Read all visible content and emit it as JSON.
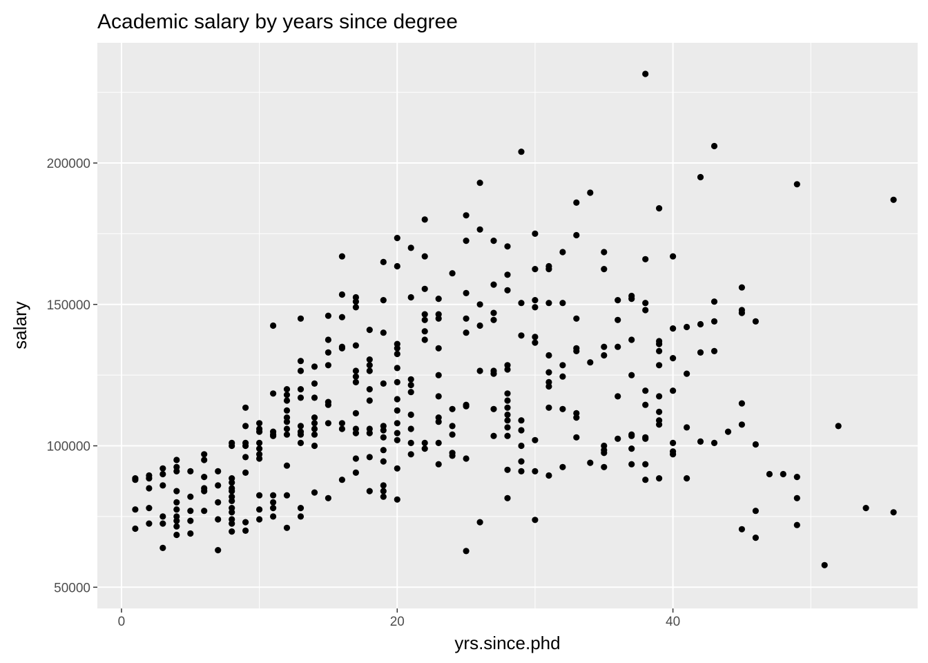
{
  "chart_data": {
    "type": "scatter",
    "title": "Academic salary by years since degree",
    "xlabel": "yrs.since.phd",
    "ylabel": "salary",
    "xlim": [
      -1.75,
      57.75
    ],
    "ylim": [
      42500,
      242500
    ],
    "x_ticks": [
      0,
      20,
      40
    ],
    "x_tick_labels": [
      "0",
      "20",
      "40"
    ],
    "y_ticks": [
      50000,
      100000,
      150000,
      200000
    ],
    "y_tick_labels": [
      "50000",
      "100000",
      "150000",
      "200000"
    ],
    "grid": true,
    "background": "#ebebeb",
    "grid_color": "#ffffff",
    "point_color": "#000000",
    "points": [
      [
        1,
        88500
      ],
      [
        1,
        88000
      ],
      [
        1,
        77500
      ],
      [
        1,
        70700
      ],
      [
        2,
        89500
      ],
      [
        2,
        88500
      ],
      [
        2,
        85000
      ],
      [
        2,
        78000
      ],
      [
        2,
        72500
      ],
      [
        3,
        92000
      ],
      [
        3,
        90000
      ],
      [
        3,
        86000
      ],
      [
        3,
        75000
      ],
      [
        3,
        72500
      ],
      [
        3,
        63900
      ],
      [
        4,
        95000
      ],
      [
        4,
        92500
      ],
      [
        4,
        91000
      ],
      [
        4,
        84000
      ],
      [
        4,
        80000
      ],
      [
        4,
        77500
      ],
      [
        4,
        75000
      ],
      [
        4,
        73500
      ],
      [
        4,
        71500
      ],
      [
        4,
        68500
      ],
      [
        5,
        91000
      ],
      [
        5,
        82000
      ],
      [
        5,
        77000
      ],
      [
        5,
        73500
      ],
      [
        5,
        69000
      ],
      [
        6,
        97000
      ],
      [
        6,
        95000
      ],
      [
        6,
        89000
      ],
      [
        6,
        85000
      ],
      [
        6,
        84000
      ],
      [
        6,
        77000
      ],
      [
        7,
        91000
      ],
      [
        7,
        86000
      ],
      [
        7,
        80000
      ],
      [
        7,
        74000
      ],
      [
        7,
        63100
      ],
      [
        8,
        101000
      ],
      [
        8,
        100000
      ],
      [
        8,
        88500
      ],
      [
        8,
        87000
      ],
      [
        8,
        85000
      ],
      [
        8,
        84000
      ],
      [
        8,
        82000
      ],
      [
        8,
        80500
      ],
      [
        8,
        78000
      ],
      [
        8,
        76500
      ],
      [
        8,
        74000
      ],
      [
        8,
        72500
      ],
      [
        8,
        69700
      ],
      [
        9,
        113500
      ],
      [
        9,
        107000
      ],
      [
        9,
        101000
      ],
      [
        9,
        100000
      ],
      [
        9,
        96000
      ],
      [
        9,
        90500
      ],
      [
        9,
        73000
      ],
      [
        9,
        70000
      ],
      [
        10,
        108000
      ],
      [
        10,
        106000
      ],
      [
        10,
        105000
      ],
      [
        10,
        101000
      ],
      [
        10,
        99000
      ],
      [
        10,
        97000
      ],
      [
        10,
        95500
      ],
      [
        10,
        82500
      ],
      [
        10,
        77500
      ],
      [
        10,
        74000
      ],
      [
        11,
        142500
      ],
      [
        11,
        118500
      ],
      [
        11,
        105000
      ],
      [
        11,
        104000
      ],
      [
        11,
        103500
      ],
      [
        11,
        82500
      ],
      [
        11,
        80000
      ],
      [
        11,
        78000
      ],
      [
        11,
        75000
      ],
      [
        12,
        120000
      ],
      [
        12,
        118000
      ],
      [
        12,
        116000
      ],
      [
        12,
        112500
      ],
      [
        12,
        110000
      ],
      [
        12,
        108500
      ],
      [
        12,
        106000
      ],
      [
        12,
        104000
      ],
      [
        12,
        93000
      ],
      [
        12,
        82500
      ],
      [
        12,
        71000
      ],
      [
        13,
        145000
      ],
      [
        13,
        130000
      ],
      [
        13,
        126500
      ],
      [
        13,
        120000
      ],
      [
        13,
        117000
      ],
      [
        13,
        107000
      ],
      [
        13,
        105000
      ],
      [
        13,
        104000
      ],
      [
        13,
        101000
      ],
      [
        13,
        78000
      ],
      [
        13,
        75000
      ],
      [
        14,
        128000
      ],
      [
        14,
        122000
      ],
      [
        14,
        117000
      ],
      [
        14,
        110000
      ],
      [
        14,
        108000
      ],
      [
        14,
        106000
      ],
      [
        14,
        104000
      ],
      [
        14,
        100000
      ],
      [
        14,
        83500
      ],
      [
        15,
        146000
      ],
      [
        15,
        137500
      ],
      [
        15,
        133000
      ],
      [
        15,
        128500
      ],
      [
        15,
        115500
      ],
      [
        15,
        114500
      ],
      [
        15,
        108000
      ],
      [
        15,
        81500
      ],
      [
        16,
        167000
      ],
      [
        16,
        153500
      ],
      [
        16,
        145500
      ],
      [
        16,
        135000
      ],
      [
        16,
        134500
      ],
      [
        16,
        108000
      ],
      [
        16,
        106000
      ],
      [
        16,
        88000
      ],
      [
        17,
        152500
      ],
      [
        17,
        151000
      ],
      [
        17,
        149000
      ],
      [
        17,
        135500
      ],
      [
        17,
        126500
      ],
      [
        17,
        124500
      ],
      [
        17,
        122500
      ],
      [
        17,
        111500
      ],
      [
        17,
        106000
      ],
      [
        17,
        104500
      ],
      [
        17,
        95500
      ],
      [
        17,
        90500
      ],
      [
        18,
        141000
      ],
      [
        18,
        130500
      ],
      [
        18,
        128500
      ],
      [
        18,
        126500
      ],
      [
        18,
        120000
      ],
      [
        18,
        116000
      ],
      [
        18,
        106000
      ],
      [
        18,
        104500
      ],
      [
        18,
        96000
      ],
      [
        18,
        84000
      ],
      [
        19,
        165000
      ],
      [
        19,
        151500
      ],
      [
        19,
        140000
      ],
      [
        19,
        122000
      ],
      [
        19,
        107000
      ],
      [
        19,
        105500
      ],
      [
        19,
        103000
      ],
      [
        19,
        98500
      ],
      [
        19,
        94500
      ],
      [
        19,
        86000
      ],
      [
        19,
        84000
      ],
      [
        19,
        82000
      ],
      [
        20,
        173500
      ],
      [
        20,
        163500
      ],
      [
        20,
        136000
      ],
      [
        20,
        134500
      ],
      [
        20,
        132500
      ],
      [
        20,
        127500
      ],
      [
        20,
        122500
      ],
      [
        20,
        116500
      ],
      [
        20,
        112500
      ],
      [
        20,
        108000
      ],
      [
        20,
        104500
      ],
      [
        20,
        102000
      ],
      [
        20,
        92000
      ],
      [
        20,
        81000
      ],
      [
        21,
        170000
      ],
      [
        21,
        152500
      ],
      [
        21,
        123500
      ],
      [
        21,
        121500
      ],
      [
        21,
        119000
      ],
      [
        21,
        111000
      ],
      [
        21,
        106000
      ],
      [
        21,
        101000
      ],
      [
        21,
        97000
      ],
      [
        22,
        180000
      ],
      [
        22,
        167000
      ],
      [
        22,
        155500
      ],
      [
        22,
        146500
      ],
      [
        22,
        144500
      ],
      [
        22,
        140500
      ],
      [
        22,
        137500
      ],
      [
        22,
        101000
      ],
      [
        22,
        99000
      ],
      [
        23,
        152000
      ],
      [
        23,
        146500
      ],
      [
        23,
        145000
      ],
      [
        23,
        134500
      ],
      [
        23,
        125000
      ],
      [
        23,
        117500
      ],
      [
        23,
        110000
      ],
      [
        23,
        108500
      ],
      [
        23,
        101000
      ],
      [
        23,
        93500
      ],
      [
        24,
        161000
      ],
      [
        24,
        113000
      ],
      [
        24,
        107000
      ],
      [
        24,
        104000
      ],
      [
        24,
        97500
      ],
      [
        24,
        96500
      ],
      [
        25,
        181500
      ],
      [
        25,
        172500
      ],
      [
        25,
        154000
      ],
      [
        25,
        145000
      ],
      [
        25,
        140000
      ],
      [
        25,
        114500
      ],
      [
        25,
        114000
      ],
      [
        25,
        95500
      ],
      [
        25,
        62800
      ],
      [
        26,
        193000
      ],
      [
        26,
        176500
      ],
      [
        26,
        150000
      ],
      [
        26,
        142500
      ],
      [
        26,
        126500
      ],
      [
        26,
        73000
      ],
      [
        27,
        172500
      ],
      [
        27,
        157000
      ],
      [
        27,
        147000
      ],
      [
        27,
        144500
      ],
      [
        27,
        126500
      ],
      [
        27,
        125500
      ],
      [
        27,
        113000
      ],
      [
        27,
        103500
      ],
      [
        28,
        170500
      ],
      [
        28,
        160500
      ],
      [
        28,
        155000
      ],
      [
        28,
        128500
      ],
      [
        28,
        127000
      ],
      [
        28,
        118500
      ],
      [
        28,
        116000
      ],
      [
        28,
        113500
      ],
      [
        28,
        111000
      ],
      [
        28,
        109000
      ],
      [
        28,
        106500
      ],
      [
        28,
        103500
      ],
      [
        28,
        91500
      ],
      [
        28,
        81500
      ],
      [
        29,
        204000
      ],
      [
        29,
        150500
      ],
      [
        29,
        139000
      ],
      [
        29,
        109000
      ],
      [
        29,
        105500
      ],
      [
        29,
        100000
      ],
      [
        29,
        94500
      ],
      [
        29,
        91000
      ],
      [
        30,
        175000
      ],
      [
        30,
        162500
      ],
      [
        30,
        151500
      ],
      [
        30,
        149000
      ],
      [
        30,
        138500
      ],
      [
        30,
        136500
      ],
      [
        30,
        102000
      ],
      [
        30,
        91000
      ],
      [
        30,
        73800
      ],
      [
        31,
        163500
      ],
      [
        31,
        162500
      ],
      [
        31,
        150500
      ],
      [
        31,
        132000
      ],
      [
        31,
        126000
      ],
      [
        31,
        122500
      ],
      [
        31,
        121000
      ],
      [
        31,
        113500
      ],
      [
        31,
        89500
      ],
      [
        32,
        168500
      ],
      [
        32,
        150500
      ],
      [
        32,
        128500
      ],
      [
        32,
        124500
      ],
      [
        32,
        113000
      ],
      [
        32,
        92500
      ],
      [
        33,
        186000
      ],
      [
        33,
        174500
      ],
      [
        33,
        145000
      ],
      [
        33,
        134500
      ],
      [
        33,
        133500
      ],
      [
        33,
        111500
      ],
      [
        33,
        110000
      ],
      [
        33,
        103000
      ],
      [
        34,
        189500
      ],
      [
        34,
        129500
      ],
      [
        34,
        94000
      ],
      [
        35,
        168500
      ],
      [
        35,
        162500
      ],
      [
        35,
        135000
      ],
      [
        35,
        132000
      ],
      [
        35,
        100000
      ],
      [
        35,
        98500
      ],
      [
        35,
        97500
      ],
      [
        35,
        92500
      ],
      [
        36,
        151500
      ],
      [
        36,
        144500
      ],
      [
        36,
        135000
      ],
      [
        36,
        117500
      ],
      [
        36,
        102500
      ],
      [
        37,
        153000
      ],
      [
        37,
        152000
      ],
      [
        37,
        137500
      ],
      [
        37,
        125000
      ],
      [
        37,
        104000
      ],
      [
        37,
        103500
      ],
      [
        37,
        99000
      ],
      [
        37,
        93500
      ],
      [
        38,
        231500
      ],
      [
        38,
        166000
      ],
      [
        38,
        150500
      ],
      [
        38,
        148000
      ],
      [
        38,
        119500
      ],
      [
        38,
        114500
      ],
      [
        38,
        103000
      ],
      [
        38,
        102500
      ],
      [
        38,
        93500
      ],
      [
        38,
        88000
      ],
      [
        39,
        184000
      ],
      [
        39,
        137000
      ],
      [
        39,
        136000
      ],
      [
        39,
        133500
      ],
      [
        39,
        128500
      ],
      [
        39,
        117500
      ],
      [
        39,
        112000
      ],
      [
        39,
        109000
      ],
      [
        39,
        107500
      ],
      [
        39,
        88500
      ],
      [
        40,
        167000
      ],
      [
        40,
        141500
      ],
      [
        40,
        131000
      ],
      [
        40,
        119500
      ],
      [
        40,
        101000
      ],
      [
        40,
        98000
      ],
      [
        40,
        97000
      ],
      [
        41,
        142000
      ],
      [
        41,
        125500
      ],
      [
        41,
        106500
      ],
      [
        41,
        88500
      ],
      [
        42,
        195000
      ],
      [
        42,
        143000
      ],
      [
        42,
        133000
      ],
      [
        42,
        101500
      ],
      [
        43,
        206000
      ],
      [
        43,
        151000
      ],
      [
        43,
        144000
      ],
      [
        43,
        133500
      ],
      [
        43,
        101000
      ],
      [
        44,
        105000
      ],
      [
        45,
        156000
      ],
      [
        45,
        148000
      ],
      [
        45,
        147000
      ],
      [
        45,
        115000
      ],
      [
        45,
        107500
      ],
      [
        45,
        70500
      ],
      [
        46,
        144000
      ],
      [
        46,
        100500
      ],
      [
        46,
        77000
      ],
      [
        46,
        67500
      ],
      [
        47,
        90000
      ],
      [
        48,
        90000
      ],
      [
        49,
        192500
      ],
      [
        49,
        89000
      ],
      [
        49,
        81500
      ],
      [
        49,
        72000
      ],
      [
        51,
        57800
      ],
      [
        52,
        107000
      ],
      [
        54,
        78000
      ],
      [
        56,
        187000
      ],
      [
        56,
        76500
      ]
    ]
  }
}
